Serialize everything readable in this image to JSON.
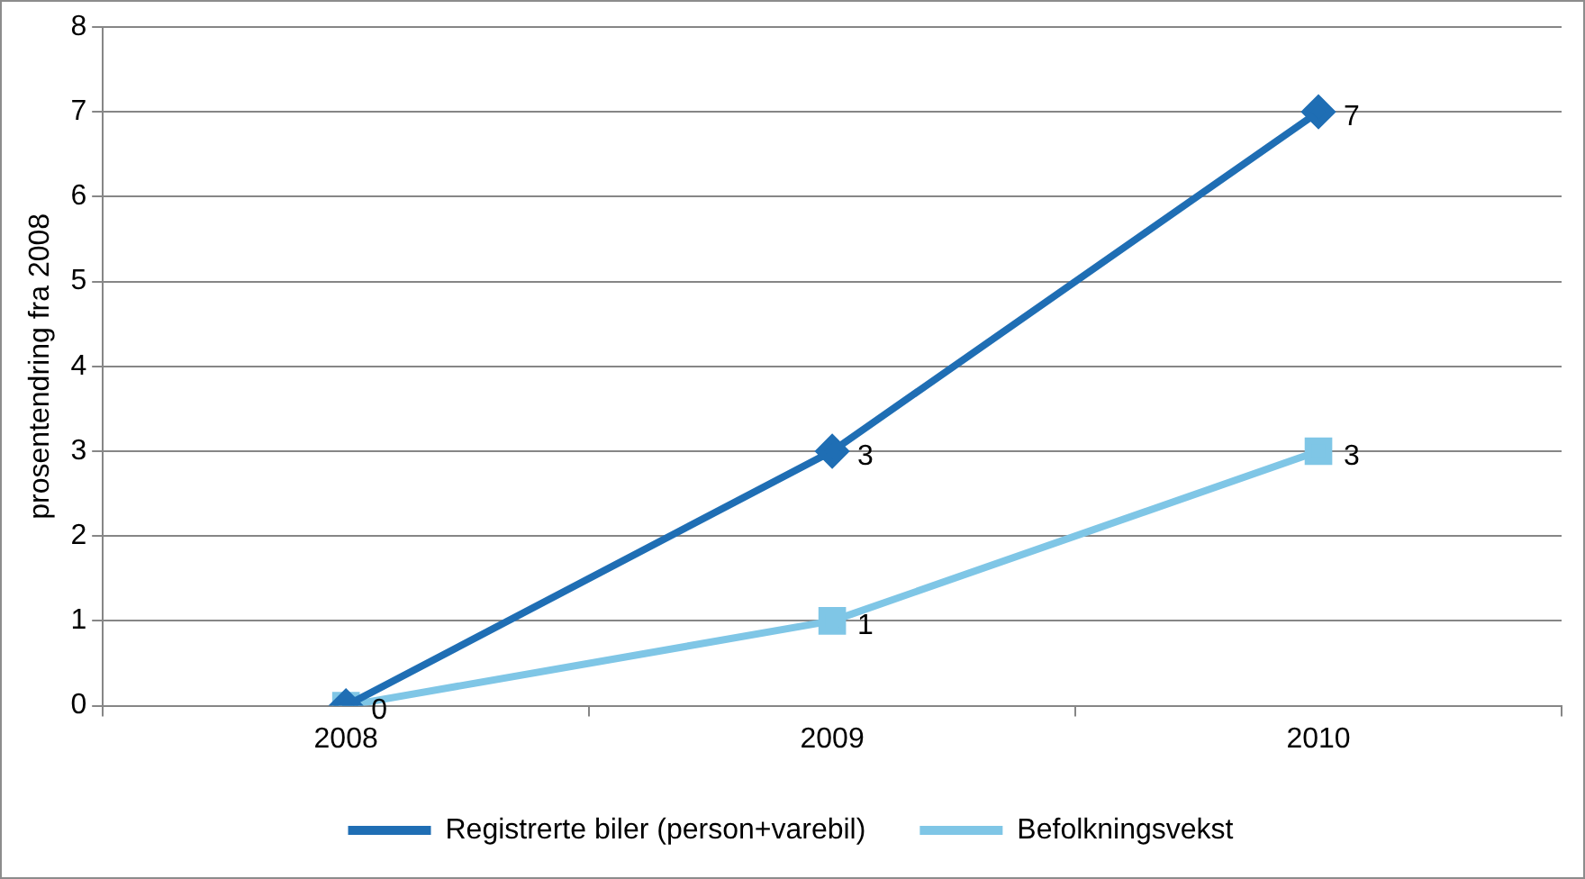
{
  "chart_data": {
    "type": "line",
    "ylabel": "prosentendring fra 2008",
    "categories": [
      "2008",
      "2009",
      "2010"
    ],
    "series": [
      {
        "name": "Registrerte biler (person+varebil)",
        "color": "#1f6eb4",
        "values": [
          0,
          3,
          7
        ],
        "marker": "diamond",
        "value_labels": [
          null,
          "3",
          "7"
        ]
      },
      {
        "name": "Befolkningsvekst",
        "color": "#7fc6e6",
        "values": [
          0,
          1,
          3
        ],
        "marker": "square",
        "value_labels": [
          "0",
          "1",
          "3"
        ]
      }
    ],
    "ylim": [
      0,
      8
    ],
    "yticks": [
      0,
      1,
      2,
      3,
      4,
      5,
      6,
      7,
      8
    ],
    "grid": "y",
    "legend": "bottom",
    "line_style": "solid"
  }
}
